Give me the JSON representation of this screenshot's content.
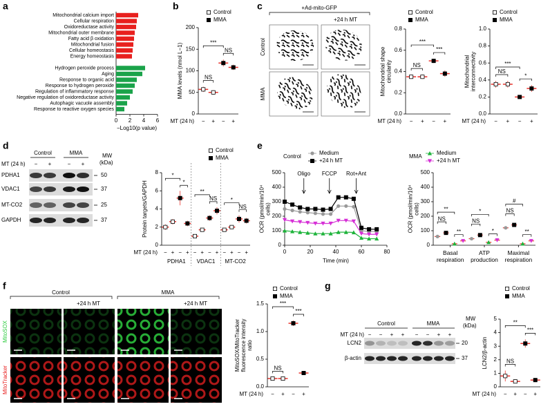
{
  "labels": {
    "panels": [
      "a",
      "b",
      "c",
      "d",
      "e",
      "f",
      "g"
    ],
    "c_images": {
      "header": "+Ad-mito-GFP",
      "column": "+24 h MT",
      "rows": [
        "Control",
        "MMA"
      ]
    },
    "d_blot": {
      "groups": [
        "Control",
        "MMA"
      ],
      "treatment": "MT (24 h)",
      "signs": [
        "−",
        "+",
        "−",
        "+"
      ],
      "mw_title": "MW",
      "mw_unit": "(kDa)",
      "proteins": [
        "PDHA1",
        "VDAC1",
        "MT-CO2",
        "GAPDH"
      ],
      "mw": [
        50,
        37,
        25,
        37
      ]
    },
    "f_images": {
      "columns": [
        "Control",
        "MMA"
      ],
      "column_sub": [
        "+24 h MT",
        "+24 h MT"
      ],
      "rows": [
        "MitoSOX",
        "MitoTracker"
      ]
    },
    "g_blot": {
      "groups": [
        "Control",
        "MMA"
      ],
      "treatment": "MT (24 h)",
      "signs": [
        "−",
        "−",
        "+",
        "+",
        "−",
        "−",
        "+",
        "+"
      ],
      "mw_title": "MW",
      "mw_unit": "(kDa)",
      "proteins": [
        "LCN2",
        "β-actin"
      ],
      "mw": [
        20,
        37
      ]
    }
  },
  "chart_data": [
    {
      "type": "hbar",
      "xlabel": "−Log10(p value)",
      "xlim": [
        0,
        6
      ],
      "xticks": [
        0,
        2,
        4,
        6
      ],
      "categories": [
        "Mitochondrial calcium import",
        "Cellular respiration",
        "Oxidoreductase activity",
        "Mitochondrial outer membrane",
        "Fatty acid β oxidation",
        "Mitochondrial fusion",
        "Cellular homeostasis",
        "Energy homeostasis",
        null,
        "Hydrogen peroxide process",
        "Aging",
        "Response to organic acid",
        "Response to hydrogen peroxide",
        "Regulation of inflammatory response",
        "Negative regulation of oxidoreductase activity",
        "Autophagic vacuole assembly",
        "Response to reactive oxygen species"
      ],
      "values": [
        3.2,
        3.0,
        2.9,
        2.7,
        2.6,
        2.5,
        2.4,
        2.3,
        null,
        4.2,
        3.8,
        3.0,
        2.7,
        2.4,
        2.0,
        1.6,
        1.2
      ],
      "colors": [
        "#e8201e",
        "#e8201e",
        "#e8201e",
        "#e8201e",
        "#e8201e",
        "#e8201e",
        "#e8201e",
        "#e8201e",
        null,
        "#1aa34a",
        "#1aa34a",
        "#1aa34a",
        "#1aa34a",
        "#1aa34a",
        "#1aa34a",
        "#1aa34a",
        "#1aa34a"
      ]
    },
    {
      "type": "dot",
      "ylabel": "MMA levels (nmol L−1)",
      "xlabel": "MT (24 h)",
      "ylim": [
        0,
        200
      ],
      "yticks": [
        0,
        50,
        100,
        150,
        200
      ],
      "categories": [
        "−",
        "+",
        "−",
        "+"
      ],
      "mean_color": "#e8322b",
      "series": [
        {
          "name": "Control",
          "marker": "open",
          "color": "#000000",
          "values": [
            57,
            50,
            null,
            null
          ],
          "errors": [
            6,
            5,
            null,
            null
          ]
        },
        {
          "name": "MMA",
          "marker": "square",
          "color": "#000000",
          "values": [
            null,
            null,
            118,
            108
          ],
          "errors": [
            null,
            null,
            8,
            6
          ]
        }
      ],
      "annotations": [
        "***",
        "NS",
        "NS"
      ]
    },
    {
      "type": "dot",
      "ylabel": "Mitochondrial shape circularity",
      "xlabel": "MT (24 h)",
      "ylim": [
        0,
        0.8
      ],
      "yticks": [
        {
          "value": 0,
          "label": "0.0"
        },
        0.2,
        0.4,
        0.6,
        0.8
      ],
      "categories": [
        "−",
        "+",
        "−",
        "+"
      ],
      "mean_color": "#e8322b",
      "series": [
        {
          "name": "Control",
          "marker": "open",
          "color": "#000000",
          "values": [
            0.35,
            0.35,
            null,
            null
          ],
          "errors": [
            0.02,
            0.02,
            null,
            null
          ]
        },
        {
          "name": "MMA",
          "marker": "square",
          "color": "#000000",
          "values": [
            null,
            null,
            0.5,
            0.38
          ],
          "errors": [
            null,
            null,
            0.02,
            0.03
          ]
        }
      ],
      "annotations": [
        "***",
        "NS",
        "***"
      ]
    },
    {
      "type": "dot",
      "ylabel": "Mitochondrial interconnectivity",
      "xlabel": "MT (24 h)",
      "ylim": [
        0,
        1.0
      ],
      "yticks": [
        {
          "value": 0,
          "label": "0.0"
        },
        0.2,
        0.4,
        0.6,
        0.8,
        {
          "value": 1,
          "label": "1.0"
        }
      ],
      "categories": [
        "−",
        "+",
        "−",
        "+"
      ],
      "mean_color": "#e8322b",
      "series": [
        {
          "name": "Control",
          "marker": "open",
          "color": "#000000",
          "values": [
            0.35,
            0.35,
            null,
            null
          ],
          "errors": [
            0.04,
            0.04,
            null,
            null
          ]
        },
        {
          "name": "MMA",
          "marker": "square",
          "color": "#000000",
          "values": [
            null,
            null,
            0.2,
            0.3
          ],
          "errors": [
            null,
            null,
            0.02,
            0.04
          ]
        }
      ],
      "annotations": [
        "***",
        "NS",
        "*"
      ]
    },
    {
      "type": "groupdot",
      "ylabel": "Protein targets/GAPDH",
      "xlabel": "MT (24 h)",
      "ylim": [
        0,
        8
      ],
      "yticks": [
        0,
        2,
        4,
        6,
        8
      ],
      "categories": [
        "PDHA1",
        "VDAC1",
        "MT-CO2"
      ],
      "conditions": [
        "−",
        "+",
        "−",
        "+"
      ],
      "mean_color": "#e8322b",
      "series": [
        {
          "name": "Control",
          "marker": "open",
          "color": "#000000",
          "values": [
            [
              2.0,
              2.6
            ],
            [
              1.0,
              1.7
            ],
            [
              1.7,
              2.0
            ]
          ],
          "errors": [
            [
              0.3,
              0.3
            ],
            [
              0.2,
              0.2
            ],
            [
              0.2,
              0.2
            ]
          ]
        },
        {
          "name": "MMA",
          "marker": "square",
          "color": "#000000",
          "values": [
            [
              5.2,
              2.4
            ],
            [
              3.0,
              3.8
            ],
            [
              2.9,
              2.7
            ]
          ],
          "errors": [
            [
              0.8,
              0.3
            ],
            [
              0.3,
              0.4
            ],
            [
              0.4,
              0.3
            ]
          ]
        }
      ],
      "annotations": [
        "*",
        "*",
        "**",
        "NS",
        "*",
        "NS"
      ]
    },
    {
      "type": "line",
      "ylabel": "OCR (pmol/min/10⁴ cells)",
      "xlabel": "Time (min)",
      "xlim": [
        0,
        80
      ],
      "xticks": [
        0,
        20,
        40,
        60,
        80
      ],
      "ylim": [
        0,
        500
      ],
      "yticks": [
        0,
        100,
        200,
        300,
        400,
        500
      ],
      "x": [
        0,
        6,
        12,
        18,
        24,
        30,
        36,
        42,
        48,
        54,
        60,
        66,
        72
      ],
      "legend_groups": [
        "Control",
        "MMA"
      ],
      "series": [
        {
          "name": "Medium",
          "marker": "circle",
          "color": "#999999",
          "values": [
            250,
            240,
            230,
            225,
            220,
            215,
            215,
            270,
            270,
            265,
            100,
            95,
            95
          ]
        },
        {
          "name": "+24 h MT",
          "marker": "square",
          "color": "#000000",
          "values": [
            300,
            280,
            260,
            250,
            250,
            245,
            250,
            330,
            330,
            320,
            120,
            110,
            110
          ]
        },
        {
          "name": "Medium",
          "marker": "triangle",
          "color": "#1db33a",
          "values": [
            100,
            95,
            90,
            85,
            80,
            80,
            80,
            90,
            90,
            88,
            50,
            45,
            45
          ]
        },
        {
          "name": "+24 h MT",
          "marker": "triangle-down",
          "color": "#d62fd6",
          "values": [
            175,
            165,
            160,
            155,
            150,
            150,
            150,
            170,
            170,
            165,
            80,
            75,
            75
          ]
        }
      ],
      "annotations": [
        {
          "text": "Oligo",
          "x": 15
        },
        {
          "text": "FCCP",
          "x": 35
        },
        {
          "text": "Rot+Ant",
          "x": 56
        }
      ]
    },
    {
      "type": "groupmean",
      "ylabel": "OCR (pmol/min/10⁴ cells)",
      "ylim": [
        0,
        500
      ],
      "yticks": [
        0,
        100,
        200,
        300,
        400,
        500
      ],
      "categories": [
        "Basal respiration",
        "ATP production",
        "Maximal respiration"
      ],
      "mean_color": "#e8322b",
      "series": [
        {
          "marker": "circle",
          "color": "#999999",
          "values": [
            60,
            45,
            120
          ]
        },
        {
          "marker": "square",
          "color": "#000000",
          "values": [
            85,
            70,
            140
          ]
        },
        {
          "marker": "triangle",
          "color": "#1db33a",
          "values": [
            10,
            20,
            10
          ]
        },
        {
          "marker": "triangle-down",
          "color": "#d62fd6",
          "values": [
            30,
            35,
            30
          ]
        }
      ],
      "annotations": [
        "**",
        "NS",
        "**",
        "*",
        "NS",
        "*",
        "#",
        "NS",
        "**"
      ]
    },
    {
      "type": "dot",
      "ylabel": "MitoSOX/MitoTracker fluorescence intensity ratio",
      "xlabel": "MT (24 h)",
      "ylim": [
        0,
        1.5
      ],
      "yticks": [
        {
          "value": 0,
          "label": "0.0"
        },
        0.5,
        {
          "value": 1,
          "label": "1.0"
        },
        1.5
      ],
      "categories": [
        "−",
        "+",
        "−",
        "+"
      ],
      "mean_color": "#e8322b",
      "series": [
        {
          "name": "Control",
          "marker": "open",
          "color": "#000000",
          "values": [
            0.15,
            0.15,
            null,
            null
          ],
          "errors": [
            0.02,
            0.02,
            null,
            null
          ]
        },
        {
          "name": "MMA",
          "marker": "square",
          "color": "#000000",
          "values": [
            null,
            null,
            1.15,
            0.25
          ],
          "errors": [
            null,
            null,
            0.05,
            0.02
          ]
        }
      ],
      "annotations": [
        "***",
        "NS",
        "***"
      ]
    },
    {
      "type": "dot",
      "ylabel": "LCN2/β-actin",
      "xlabel": "MT (24 h)",
      "ylim": [
        0,
        5
      ],
      "yticks": [
        0,
        1,
        2,
        3,
        4,
        5
      ],
      "categories": [
        "−",
        "+",
        "−",
        "+"
      ],
      "mean_color": "#e8322b",
      "series": [
        {
          "name": "Control",
          "marker": "open",
          "color": "#000000",
          "values": [
            0.8,
            0.4,
            null,
            null
          ],
          "errors": [
            0.4,
            0.15,
            null,
            null
          ]
        },
        {
          "name": "MMA",
          "marker": "square",
          "color": "#000000",
          "values": [
            null,
            null,
            3.2,
            0.5
          ],
          "errors": [
            null,
            null,
            0.3,
            0.15
          ]
        }
      ],
      "annotations": [
        "**",
        "NS",
        "***"
      ]
    }
  ]
}
